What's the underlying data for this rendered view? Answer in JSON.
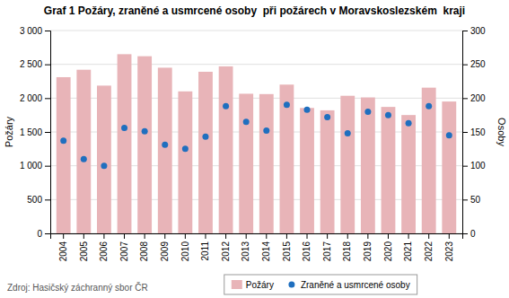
{
  "chart_data": {
    "type": "bar",
    "title": "Graf 1 Požáry, zraněné a usmrcené osoby  při požárech v Moravskoslezském  kraji",
    "ylabel": "Požáry",
    "y2label": "Osoby",
    "annotations": [
      "Zdroj: Hasičský záchranný sbor ČR"
    ],
    "categories": [
      2004,
      2005,
      2006,
      2007,
      2008,
      2009,
      2010,
      2011,
      2012,
      2013,
      2014,
      2015,
      2016,
      2017,
      2018,
      2019,
      2020,
      2021,
      2022,
      2023
    ],
    "series": [
      {
        "name": "Požáry",
        "type": "bar",
        "color": "#e8b4b8",
        "values": [
          2310,
          2420,
          2185,
          2650,
          2620,
          2450,
          2100,
          2390,
          2470,
          2065,
          2060,
          2200,
          1855,
          1820,
          2035,
          2010,
          1870,
          1750,
          2155,
          1950
        ]
      },
      {
        "name": "Zraněné a usmrcené osoby",
        "type": "scatter",
        "marker": "circle",
        "axis": "y2",
        "color": "#1f6fbf",
        "values": [
          137,
          110,
          100,
          156,
          151,
          131,
          125,
          143,
          188,
          165,
          152,
          190,
          183,
          172,
          148,
          180,
          175,
          163,
          188,
          145
        ]
      }
    ],
    "ylim": [
      0,
      3000
    ],
    "yticks": [
      0,
      500,
      {
        "value": 1000,
        "label": "1 000"
      },
      {
        "value": 1500,
        "label": "1 500"
      },
      {
        "value": 2000,
        "label": "2 000"
      },
      {
        "value": 2500,
        "label": "2 500"
      },
      {
        "value": 3000,
        "label": "3 000"
      }
    ],
    "y2lim": [
      0,
      300
    ],
    "y2ticks": [
      0,
      50,
      100,
      150,
      200,
      250,
      300
    ],
    "grid": true,
    "legend": "bottom"
  }
}
